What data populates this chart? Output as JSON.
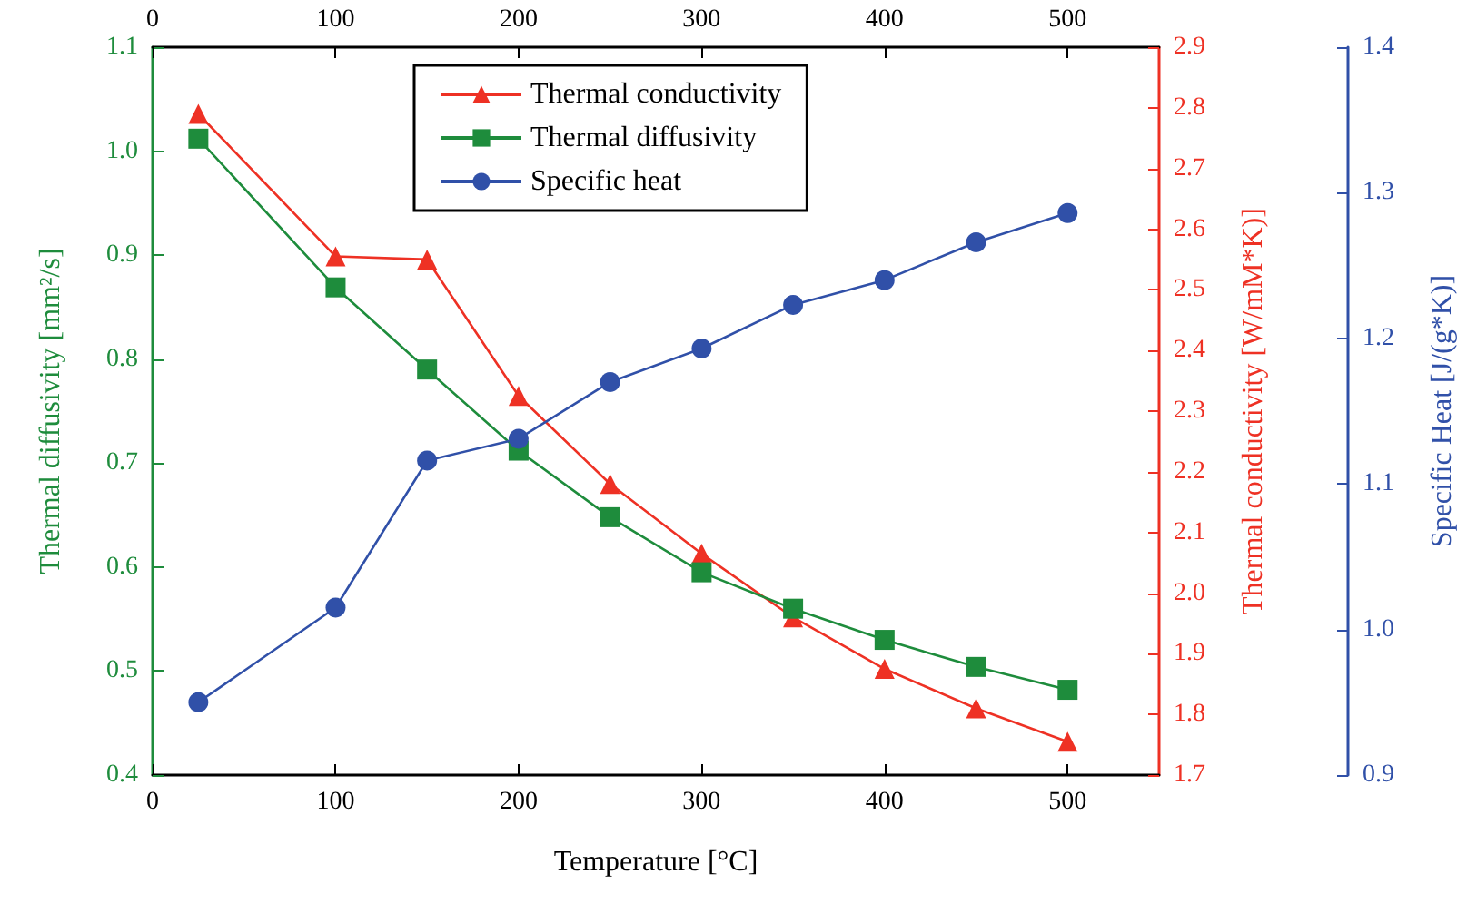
{
  "chart_data": {
    "type": "line",
    "xlabel": "Temperature [°C]",
    "ylabel": "Thermal diffusivity [mm²/s]",
    "y2label": "Thermal conductivity [W/mM*K)]",
    "y3label": "Specific Heat [J/(g*K)]",
    "x": [
      25,
      100,
      150,
      200,
      250,
      300,
      350,
      400,
      450,
      500
    ],
    "xlim": [
      0,
      550
    ],
    "xticks": [
      0,
      100,
      200,
      300,
      400,
      500
    ],
    "x2lim": [
      0,
      550
    ],
    "x2ticks": [
      0,
      100,
      200,
      300,
      400,
      500
    ],
    "ylim": [
      0.4,
      1.1
    ],
    "yticks": [
      0.4,
      0.5,
      0.6,
      0.7,
      0.8,
      0.9,
      {
        "value": 1.0,
        "label": "1.0"
      },
      1.1
    ],
    "y2lim": [
      1.7,
      2.9
    ],
    "y2ticks": [
      1.7,
      1.8,
      1.9,
      {
        "value": 2.0,
        "label": "2.0"
      },
      2.1,
      2.2,
      2.3,
      2.4,
      2.5,
      2.6,
      2.7,
      2.8,
      2.9
    ],
    "y3lim": [
      0.9,
      1.4
    ],
    "y3ticks": [
      0.9,
      {
        "value": 1.0,
        "label": "1.0"
      },
      1.1,
      1.2,
      1.3,
      1.4
    ],
    "series": [
      {
        "name": "Thermal conductivity",
        "color": "#ee3124",
        "axis": "y2",
        "marker": "triangle",
        "values": [
          2.79,
          2.555,
          2.55,
          2.325,
          2.18,
          2.065,
          1.96,
          1.875,
          1.81,
          1.755
        ]
      },
      {
        "name": "Thermal diffusivity",
        "color": "#1e8c3c",
        "axis": "y",
        "marker": "square",
        "values": [
          1.012,
          0.869,
          0.79,
          0.712,
          0.648,
          0.595,
          0.56,
          0.53,
          0.504,
          0.482
        ]
      },
      {
        "name": "Specific heat",
        "color": "#3050a8",
        "axis": "y3",
        "marker": "circle",
        "values": [
          0.95,
          1.015,
          1.116,
          1.131,
          1.17,
          1.193,
          1.223,
          1.24,
          1.266,
          1.286
        ]
      }
    ],
    "legend": "top",
    "grid": false,
    "line_style": "solid"
  }
}
